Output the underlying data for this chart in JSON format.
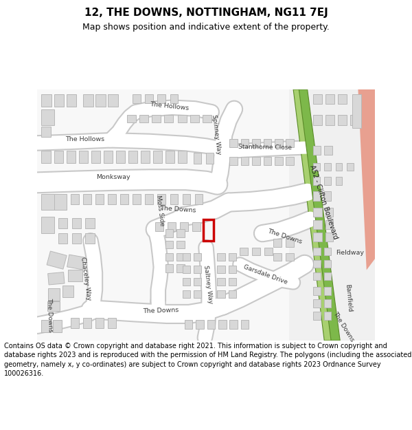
{
  "title": "12, THE DOWNS, NOTTINGHAM, NG11 7EJ",
  "subtitle": "Map shows position and indicative extent of the property.",
  "footer": "Contains OS data © Crown copyright and database right 2021. This information is subject to Crown copyright and database rights 2023 and is reproduced with the permission of HM Land Registry. The polygons (including the associated geometry, namely x, y co-ordinates) are subject to Crown copyright and database rights 2023 Ordnance Survey 100026316.",
  "map_bg": "#f2f2f2",
  "road_bg": "#ffffff",
  "building_fill": "#d8d8d8",
  "building_edge": "#b8b8b8",
  "highlight_edge": "#cc0000",
  "green_fill": "#7db84a",
  "green_fill2": "#a8d070",
  "green_edge": "#5a8a28",
  "salmon_fill": "#e8a090",
  "label_color": "#3a3a3a",
  "footer_bg": "#ffffff",
  "title_fontsize": 11,
  "subtitle_fontsize": 9,
  "footer_fontsize": 7.0
}
